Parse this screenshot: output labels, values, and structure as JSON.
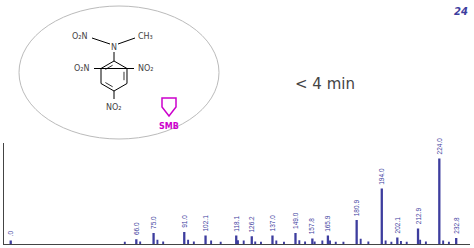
{
  "chart_data": {
    "type": "bar",
    "xlim": [
      -3,
      240
    ],
    "ylim": [
      0,
      1.18
    ],
    "tick_labels": false,
    "grid": false,
    "data_labels": true,
    "series": [
      {
        "x": [
          60,
          68,
          77,
          80,
          93,
          96,
          105,
          110,
          119,
          122,
          128,
          131,
          139,
          143,
          151,
          154,
          159,
          163,
          167,
          170,
          174,
          183,
          187,
          196,
          199,
          204,
          207,
          214,
          217,
          226,
          229
        ],
        "values": [
          0.025,
          0.03,
          0.05,
          0.03,
          0.05,
          0.03,
          0.04,
          0.025,
          0.045,
          0.04,
          0.03,
          0.025,
          0.04,
          0.025,
          0.045,
          0.03,
          0.03,
          0.04,
          0.04,
          0.025,
          0.025,
          0.06,
          0.03,
          0.04,
          0.025,
          0.035,
          0.025,
          0.05,
          0.03,
          0.04,
          0.025
        ],
        "color": "#3d3d9e"
      },
      {
        "x": [
          0.5,
          66.0,
          75.0,
          91.0,
          102.1,
          118.1,
          126.2,
          137.0,
          149.0,
          157.8,
          165.9,
          180.9,
          194.0,
          202.1,
          212.9,
          224.0,
          232.8
        ],
        "values": [
          0.04,
          0.055,
          0.13,
          0.14,
          0.1,
          0.1,
          0.09,
          0.1,
          0.13,
          0.065,
          0.1,
          0.28,
          0.65,
          0.075,
          0.18,
          1.0,
          0.07
        ],
        "labels": [
          ".0",
          "66.0",
          "75.0",
          "91.0",
          "102.1",
          "118.1",
          "126.2",
          "137.0",
          "149.0",
          "157.8",
          "165.9",
          "180.9",
          "194.0",
          "202.1",
          "212.9",
          "224.0",
          "232.8"
        ],
        "color": "#3d3d9e"
      }
    ],
    "annotations": [
      {
        "text": "24",
        "color": "#3d3d9e"
      },
      {
        "text": "< 4 min"
      },
      {
        "text": "N"
      },
      {
        "text": "O₂N"
      },
      {
        "text": "CH₃"
      },
      {
        "text": "O₂N"
      },
      {
        "text": "NO₂"
      },
      {
        "text": "NO₂"
      },
      {
        "text": "SMB",
        "color": "#cc00cc"
      }
    ]
  }
}
